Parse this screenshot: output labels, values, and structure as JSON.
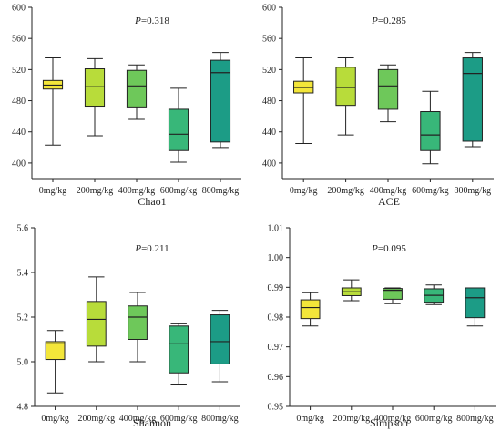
{
  "colors": {
    "axis": "#222222",
    "groups": [
      "#f3e63a",
      "#b8dc3a",
      "#6ec85a",
      "#38b779",
      "#1c9c86"
    ]
  },
  "chart_data": [
    {
      "type": "box",
      "xlabel": "Chao1",
      "ylabel": "",
      "p_prefix": "P",
      "p_value": "=0.318",
      "categories": [
        "0mg/kg",
        "200mg/kg",
        "400mg/kg",
        "600mg/kg",
        "800mg/kg"
      ],
      "ylim": [
        380,
        600
      ],
      "yticks": [
        400,
        440,
        480,
        520,
        560,
        600
      ],
      "ytick_labels": [
        "400",
        "440",
        "480",
        "520",
        "560",
        "600"
      ],
      "boxes": [
        {
          "min": 423,
          "q1": 495,
          "median": 500,
          "q3": 506,
          "max": 535
        },
        {
          "min": 435,
          "q1": 473,
          "median": 498,
          "q3": 521,
          "max": 534
        },
        {
          "min": 456,
          "q1": 472,
          "median": 499,
          "q3": 519,
          "max": 526
        },
        {
          "min": 401,
          "q1": 416,
          "median": 437,
          "q3": 469,
          "max": 496
        },
        {
          "min": 420,
          "q1": 427,
          "median": 516,
          "q3": 532,
          "max": 542
        }
      ]
    },
    {
      "type": "box",
      "xlabel": "ACE",
      "ylabel": "",
      "p_prefix": "P",
      "p_value": "=0.285",
      "categories": [
        "0mg/kg",
        "200mg/kg",
        "400mg/kg",
        "600mg/kg",
        "800mg/kg"
      ],
      "ylim": [
        380,
        600
      ],
      "yticks": [
        400,
        440,
        480,
        520,
        560,
        600
      ],
      "ytick_labels": [
        "400",
        "440",
        "480",
        "520",
        "560",
        "600"
      ],
      "boxes": [
        {
          "min": 425,
          "q1": 490,
          "median": 497,
          "q3": 505,
          "max": 535
        },
        {
          "min": 436,
          "q1": 474,
          "median": 497,
          "q3": 523,
          "max": 535
        },
        {
          "min": 453,
          "q1": 469,
          "median": 499,
          "q3": 520,
          "max": 526
        },
        {
          "min": 399,
          "q1": 416,
          "median": 436,
          "q3": 466,
          "max": 492
        },
        {
          "min": 421,
          "q1": 428,
          "median": 515,
          "q3": 535,
          "max": 542
        }
      ]
    },
    {
      "type": "box",
      "xlabel": "Shannon",
      "ylabel": "",
      "p_prefix": "P",
      "p_value": "=0.211",
      "categories": [
        "0mg/kg",
        "200mg/kg",
        "400mg/kg",
        "600mg/kg",
        "800mg/kg"
      ],
      "ylim": [
        4.8,
        5.6
      ],
      "yticks": [
        4.8,
        5.0,
        5.2,
        5.4,
        5.6
      ],
      "ytick_labels": [
        "4.8",
        "5.0",
        "5.2",
        "5.4",
        "5.6"
      ],
      "boxes": [
        {
          "min": 4.86,
          "q1": 5.01,
          "median": 5.08,
          "q3": 5.09,
          "max": 5.14
        },
        {
          "min": 5.0,
          "q1": 5.07,
          "median": 5.19,
          "q3": 5.27,
          "max": 5.38
        },
        {
          "min": 5.0,
          "q1": 5.1,
          "median": 5.2,
          "q3": 5.25,
          "max": 5.31
        },
        {
          "min": 4.9,
          "q1": 4.95,
          "median": 5.08,
          "q3": 5.16,
          "max": 5.17
        },
        {
          "min": 4.91,
          "q1": 4.99,
          "median": 5.09,
          "q3": 5.21,
          "max": 5.23
        }
      ]
    },
    {
      "type": "box",
      "xlabel": "Simpson",
      "ylabel": "",
      "p_prefix": "P",
      "p_value": "=0.095",
      "categories": [
        "0mg/kg",
        "200mg/kg",
        "400mg/kg",
        "600mg/kg",
        "800mg/kg"
      ],
      "ylim": [
        0.95,
        1.01
      ],
      "yticks": [
        0.95,
        0.96,
        0.97,
        0.98,
        0.99,
        1.0,
        1.01
      ],
      "ytick_labels": [
        "0.95",
        "0.96",
        "0.97",
        "0.98",
        "0.99",
        "1.00",
        "1.01"
      ],
      "boxes": [
        {
          "min": 0.977,
          "q1": 0.9795,
          "median": 0.9832,
          "q3": 0.9858,
          "max": 0.9882
        },
        {
          "min": 0.9855,
          "q1": 0.9872,
          "median": 0.9885,
          "q3": 0.9898,
          "max": 0.9925
        },
        {
          "min": 0.9845,
          "q1": 0.986,
          "median": 0.989,
          "q3": 0.9896,
          "max": 0.9898
        },
        {
          "min": 0.9842,
          "q1": 0.985,
          "median": 0.9873,
          "q3": 0.9895,
          "max": 0.9908
        },
        {
          "min": 0.977,
          "q1": 0.9798,
          "median": 0.9865,
          "q3": 0.9898,
          "max": 0.9898
        }
      ]
    }
  ]
}
